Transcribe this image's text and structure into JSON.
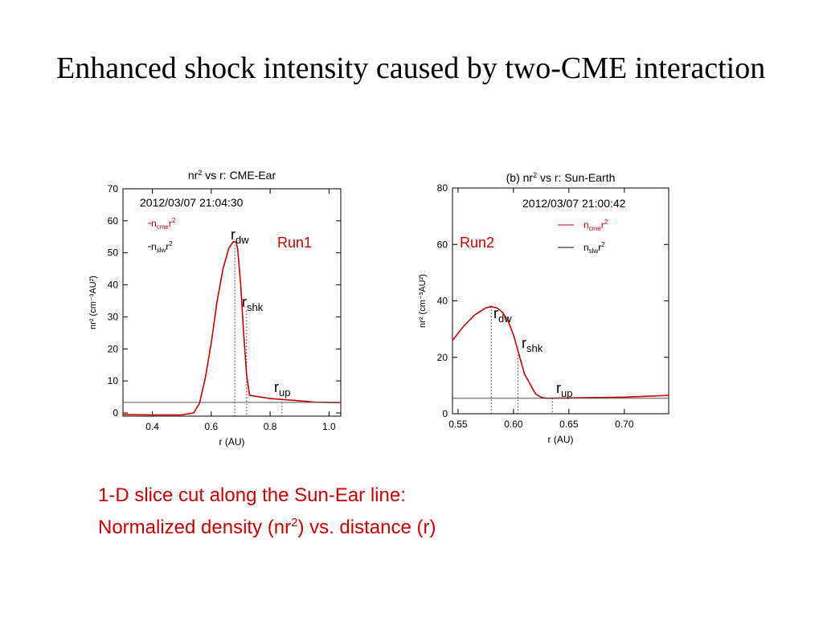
{
  "slide": {
    "title": "Enhanced shock intensity caused by two-CME interaction",
    "caption_line1": "1-D slice cut along the Sun-Ear line:",
    "caption_line2_pre": "Normalized density (nr",
    "caption_line2_sup": "2",
    "caption_line2_post": ") vs. distance (r)",
    "caption_color": "#cc0000"
  },
  "chart_data": [
    {
      "type": "line",
      "title": "nr² vs r: CME-Ear",
      "timestamp": "2012/03/07 21:04:30",
      "run_label": "Run1",
      "xlabel": "r (AU)",
      "ylabel": "nr² (cm⁻³AU²)",
      "xlim": [
        0.3,
        1.04
      ],
      "ylim": [
        -1,
        70
      ],
      "xticks": [
        0.4,
        0.6,
        0.8,
        1.0
      ],
      "xtick_labels": [
        "0.4",
        "0.6",
        "0.8",
        "1.0"
      ],
      "yticks": [
        0,
        10,
        20,
        30,
        40,
        50,
        60,
        70
      ],
      "ytick_labels": [
        "0",
        "10",
        "20",
        "30",
        "40",
        "50",
        "60",
        "70"
      ],
      "grid": false,
      "legend_placement": "top-left",
      "series": [
        {
          "name": "ncmer²",
          "color": "#cc0000",
          "x": [
            0.3,
            0.4,
            0.5,
            0.54,
            0.56,
            0.58,
            0.6,
            0.62,
            0.64,
            0.66,
            0.675,
            0.685,
            0.69,
            0.7,
            0.71,
            0.72,
            0.73,
            0.8,
            0.9,
            0.95,
            1.0,
            1.04
          ],
          "y": [
            -0.5,
            -0.6,
            -0.6,
            0.0,
            3,
            11,
            22,
            35,
            45,
            51.5,
            53.5,
            53.3,
            51,
            40,
            25,
            12,
            5.5,
            4.5,
            3.8,
            3.4,
            3.3,
            3.3
          ]
        },
        {
          "name": "nslwr²",
          "color": "#555555",
          "x": [
            0.3,
            1.04
          ],
          "y": [
            3.3,
            3.3
          ]
        }
      ],
      "markers": [
        {
          "label": "r",
          "sub": "dw",
          "x": 0.68,
          "y_top": 53.5
        },
        {
          "label": "r",
          "sub": "shk",
          "x": 0.72,
          "y_top": 32
        },
        {
          "label": "r",
          "sub": "up",
          "x": 0.84,
          "y_top": 3.3
        }
      ],
      "legend": [
        {
          "pre": "n",
          "sub": "cme",
          "post": "r",
          "sup": "2",
          "color": "#cc0000"
        },
        {
          "pre": "n",
          "sub": "slw",
          "post": "r",
          "sup": "2",
          "color": "#000000"
        }
      ]
    },
    {
      "type": "line",
      "title": "(b) nr² vs r: Sun-Earth",
      "timestamp": "2012/03/07 21:00:42",
      "run_label": "Run2",
      "xlabel": "r (AU)",
      "ylabel": "nr² (cm⁻³AU²)",
      "xlim": [
        0.545,
        0.74
      ],
      "ylim": [
        0,
        80
      ],
      "xticks": [
        0.55,
        0.6,
        0.65,
        0.7
      ],
      "xtick_labels": [
        "0.55",
        "0.60",
        "0.65",
        "0.70"
      ],
      "yticks": [
        0,
        20,
        40,
        60,
        80
      ],
      "ytick_labels": [
        "0",
        "20",
        "40",
        "60",
        "80"
      ],
      "grid": false,
      "legend_placement": "top-right",
      "series": [
        {
          "name": "ncmer²",
          "color": "#cc0000",
          "x": [
            0.545,
            0.555,
            0.565,
            0.575,
            0.58,
            0.585,
            0.59,
            0.595,
            0.6,
            0.605,
            0.61,
            0.62,
            0.625,
            0.63,
            0.65,
            0.7,
            0.74
          ],
          "y": [
            26,
            31,
            35,
            37.5,
            38,
            37.5,
            36,
            33,
            28,
            21,
            14,
            7,
            5.8,
            5.5,
            5.6,
            5.9,
            6.5
          ]
        },
        {
          "name": "nslwr²",
          "color": "#555555",
          "x": [
            0.545,
            0.74
          ],
          "y": [
            5.5,
            5.5
          ]
        }
      ],
      "markers": [
        {
          "label": "r",
          "sub": "dw",
          "x": 0.58,
          "y_top": 38
        },
        {
          "label": "r",
          "sub": "shk",
          "x": 0.604,
          "y_top": 22
        },
        {
          "label": "r",
          "sub": "up",
          "x": 0.635,
          "y_top": 5.5
        }
      ],
      "legend": [
        {
          "pre": "n",
          "sub": "cme",
          "post": "r",
          "sup": "2",
          "color": "#cc0000"
        },
        {
          "pre": "n",
          "sub": "slw",
          "post": "r",
          "sup": "2",
          "color": "#000000"
        }
      ]
    }
  ]
}
